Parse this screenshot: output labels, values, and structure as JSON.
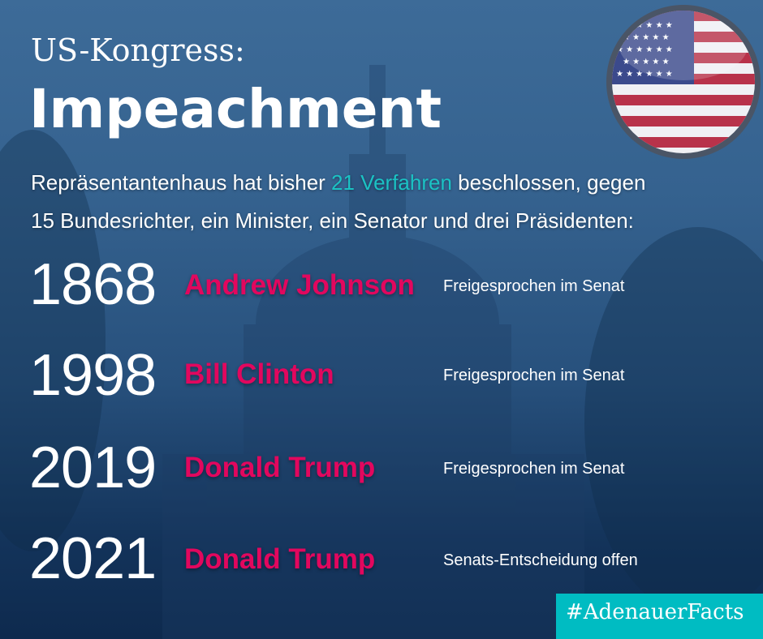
{
  "header": {
    "kicker": "US-Kongress:",
    "title": "Impeachment"
  },
  "intro": {
    "line1_pre": "Repräsentantenhaus hat bisher ",
    "line1_highlight": "21 Verfahren",
    "line1_post": " beschlossen, gegen",
    "line2": "15 Bundesrichter, ein Minister, ein Senator und drei Präsidenten:"
  },
  "entries": [
    {
      "year": "1868",
      "name": "Andrew Johnson",
      "result": "Freigesprochen im Senat"
    },
    {
      "year": "1998",
      "name": "Bill Clinton",
      "result": "Freigesprochen im Senat"
    },
    {
      "year": "2019",
      "name": "Donald Trump",
      "result": "Freigesprochen im Senat"
    },
    {
      "year": "2021",
      "name": "Donald Trump",
      "result": "Senats-Entscheidung offen"
    }
  ],
  "hashtag": "#AdenauerFacts",
  "colors": {
    "highlight": "#1bc2c4",
    "name": "#e2075e",
    "hashtag_bg": "#00bcc2"
  },
  "icons": {
    "flag": "us-flag-badge-icon"
  }
}
